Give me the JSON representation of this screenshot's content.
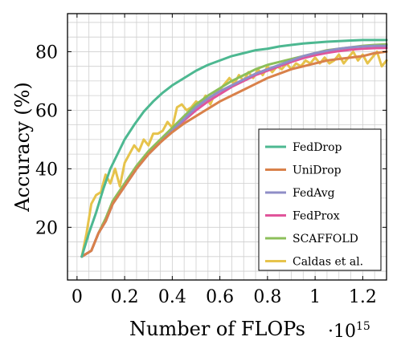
{
  "chart_data": {
    "type": "line",
    "title": "",
    "xlabel": "Number of FLOPs",
    "ylabel": "Accuracy (%)",
    "x_scale_label": "·10",
    "x_scale_exponent": "15",
    "xlim": [
      -0.04,
      1.3
    ],
    "ylim": [
      2,
      93
    ],
    "x_ticks": [
      0,
      0.2,
      0.4,
      0.6,
      0.8,
      1,
      1.2
    ],
    "x_tick_labels": [
      "0",
      "0.2",
      "0.4",
      "0.6",
      "0.8",
      "1",
      "1.2"
    ],
    "y_ticks": [
      20,
      40,
      60,
      80
    ],
    "y_tick_labels": [
      "20",
      "40",
      "60",
      "80"
    ],
    "x_minor_step": 0.05,
    "y_minor_step": 5,
    "grid": true,
    "legend_position": "lower-right",
    "series": [
      {
        "name": "FedDrop",
        "color": "#4db891",
        "points": [
          [
            0.02,
            10
          ],
          [
            0.05,
            18
          ],
          [
            0.08,
            25
          ],
          [
            0.11,
            33
          ],
          [
            0.14,
            40
          ],
          [
            0.17,
            45
          ],
          [
            0.2,
            50
          ],
          [
            0.24,
            55
          ],
          [
            0.28,
            59.5
          ],
          [
            0.32,
            63
          ],
          [
            0.36,
            66
          ],
          [
            0.4,
            68.5
          ],
          [
            0.45,
            71
          ],
          [
            0.5,
            73.5
          ],
          [
            0.55,
            75.5
          ],
          [
            0.6,
            77
          ],
          [
            0.65,
            78.5
          ],
          [
            0.7,
            79.5
          ],
          [
            0.75,
            80.5
          ],
          [
            0.8,
            81
          ],
          [
            0.85,
            81.8
          ],
          [
            0.9,
            82.3
          ],
          [
            0.95,
            82.8
          ],
          [
            1.0,
            83.1
          ],
          [
            1.05,
            83.4
          ],
          [
            1.1,
            83.6
          ],
          [
            1.15,
            83.8
          ],
          [
            1.2,
            84
          ],
          [
            1.25,
            84
          ],
          [
            1.3,
            84
          ]
        ]
      },
      {
        "name": "UniDrop",
        "color": "#d9814a",
        "points": [
          [
            0.02,
            10
          ],
          [
            0.06,
            12
          ],
          [
            0.09,
            18
          ],
          [
            0.12,
            22
          ],
          [
            0.15,
            28
          ],
          [
            0.2,
            34
          ],
          [
            0.25,
            40
          ],
          [
            0.3,
            45
          ],
          [
            0.35,
            49
          ],
          [
            0.4,
            52.5
          ],
          [
            0.45,
            55.5
          ],
          [
            0.5,
            58
          ],
          [
            0.55,
            60.5
          ],
          [
            0.6,
            63
          ],
          [
            0.65,
            65
          ],
          [
            0.7,
            67
          ],
          [
            0.75,
            69
          ],
          [
            0.8,
            71
          ],
          [
            0.85,
            72.5
          ],
          [
            0.9,
            74
          ],
          [
            0.95,
            75
          ],
          [
            1.0,
            76
          ],
          [
            1.05,
            77
          ],
          [
            1.1,
            77.5
          ],
          [
            1.15,
            78
          ],
          [
            1.2,
            78.5
          ],
          [
            1.25,
            79.5
          ],
          [
            1.3,
            80
          ]
        ]
      },
      {
        "name": "FedAvg",
        "color": "#8f8ec7",
        "points": [
          [
            0.02,
            10
          ],
          [
            0.06,
            12
          ],
          [
            0.09,
            18
          ],
          [
            0.12,
            22
          ],
          [
            0.15,
            28
          ],
          [
            0.2,
            34
          ],
          [
            0.25,
            40
          ],
          [
            0.3,
            45
          ],
          [
            0.35,
            49
          ],
          [
            0.4,
            53
          ],
          [
            0.45,
            57
          ],
          [
            0.5,
            61
          ],
          [
            0.55,
            64
          ],
          [
            0.6,
            66.5
          ],
          [
            0.65,
            68.5
          ],
          [
            0.7,
            70.5
          ],
          [
            0.75,
            72.5
          ],
          [
            0.8,
            74
          ],
          [
            0.85,
            75.5
          ],
          [
            0.9,
            77
          ],
          [
            0.95,
            78.5
          ],
          [
            1.0,
            79.5
          ],
          [
            1.05,
            80.3
          ],
          [
            1.1,
            81
          ],
          [
            1.15,
            81.5
          ],
          [
            1.2,
            81.8
          ],
          [
            1.25,
            82
          ],
          [
            1.3,
            82
          ]
        ]
      },
      {
        "name": "FedProx",
        "color": "#e0559b",
        "points": [
          [
            0.02,
            10
          ],
          [
            0.06,
            12
          ],
          [
            0.09,
            18
          ],
          [
            0.12,
            22
          ],
          [
            0.15,
            28
          ],
          [
            0.2,
            34
          ],
          [
            0.25,
            40
          ],
          [
            0.3,
            45
          ],
          [
            0.35,
            49
          ],
          [
            0.4,
            53
          ],
          [
            0.45,
            56.5
          ],
          [
            0.5,
            60
          ],
          [
            0.55,
            63
          ],
          [
            0.6,
            65.5
          ],
          [
            0.65,
            68
          ],
          [
            0.7,
            70
          ],
          [
            0.75,
            72
          ],
          [
            0.8,
            73.5
          ],
          [
            0.85,
            75
          ],
          [
            0.9,
            76.5
          ],
          [
            0.95,
            77.8
          ],
          [
            1.0,
            78.8
          ],
          [
            1.05,
            79.6
          ],
          [
            1.1,
            80.2
          ],
          [
            1.15,
            80.7
          ],
          [
            1.2,
            81
          ],
          [
            1.25,
            81.2
          ],
          [
            1.3,
            81.3
          ]
        ]
      },
      {
        "name": "SCAFFOLD",
        "color": "#8cbf5a",
        "points": [
          [
            0.02,
            10
          ],
          [
            0.06,
            12
          ],
          [
            0.09,
            18
          ],
          [
            0.12,
            23
          ],
          [
            0.15,
            29
          ],
          [
            0.2,
            35
          ],
          [
            0.25,
            41
          ],
          [
            0.3,
            46
          ],
          [
            0.35,
            50
          ],
          [
            0.4,
            54
          ],
          [
            0.45,
            58
          ],
          [
            0.5,
            62
          ],
          [
            0.55,
            65
          ],
          [
            0.6,
            67.5
          ],
          [
            0.65,
            70
          ],
          [
            0.7,
            72
          ],
          [
            0.75,
            74
          ],
          [
            0.8,
            75.5
          ],
          [
            0.85,
            76.5
          ],
          [
            0.9,
            77.5
          ],
          [
            0.95,
            78.5
          ],
          [
            1.0,
            79.5
          ],
          [
            1.05,
            80.5
          ],
          [
            1.1,
            81
          ],
          [
            1.15,
            81.5
          ],
          [
            1.2,
            82
          ],
          [
            1.25,
            82.3
          ],
          [
            1.3,
            82.5
          ]
        ]
      },
      {
        "name": "Caldas et al.",
        "color": "#e6c34b",
        "points": [
          [
            0.02,
            10
          ],
          [
            0.04,
            18
          ],
          [
            0.06,
            28
          ],
          [
            0.08,
            31
          ],
          [
            0.1,
            32
          ],
          [
            0.12,
            38
          ],
          [
            0.14,
            35
          ],
          [
            0.16,
            40
          ],
          [
            0.18,
            34
          ],
          [
            0.2,
            42
          ],
          [
            0.22,
            45
          ],
          [
            0.24,
            48
          ],
          [
            0.26,
            46
          ],
          [
            0.28,
            50
          ],
          [
            0.3,
            48
          ],
          [
            0.32,
            52
          ],
          [
            0.34,
            52
          ],
          [
            0.36,
            53
          ],
          [
            0.38,
            56
          ],
          [
            0.4,
            54
          ],
          [
            0.42,
            61
          ],
          [
            0.44,
            62
          ],
          [
            0.46,
            60
          ],
          [
            0.48,
            61
          ],
          [
            0.5,
            63
          ],
          [
            0.52,
            62
          ],
          [
            0.54,
            65
          ],
          [
            0.56,
            62
          ],
          [
            0.58,
            66
          ],
          [
            0.6,
            67
          ],
          [
            0.62,
            69
          ],
          [
            0.64,
            71
          ],
          [
            0.66,
            69
          ],
          [
            0.68,
            72
          ],
          [
            0.7,
            70
          ],
          [
            0.72,
            73
          ],
          [
            0.74,
            71
          ],
          [
            0.76,
            74
          ],
          [
            0.78,
            72
          ],
          [
            0.8,
            75
          ],
          [
            0.82,
            73
          ],
          [
            0.84,
            75
          ],
          [
            0.86,
            74
          ],
          [
            0.88,
            76
          ],
          [
            0.9,
            74
          ],
          [
            0.92,
            76
          ],
          [
            0.94,
            75
          ],
          [
            0.96,
            77
          ],
          [
            0.98,
            76
          ],
          [
            1.0,
            78
          ],
          [
            1.02,
            76
          ],
          [
            1.04,
            78
          ],
          [
            1.06,
            76
          ],
          [
            1.08,
            77
          ],
          [
            1.1,
            79
          ],
          [
            1.12,
            76
          ],
          [
            1.14,
            78
          ],
          [
            1.16,
            80
          ],
          [
            1.18,
            77
          ],
          [
            1.2,
            79
          ],
          [
            1.22,
            76
          ],
          [
            1.24,
            78
          ],
          [
            1.26,
            80
          ],
          [
            1.28,
            75
          ],
          [
            1.3,
            77
          ]
        ]
      }
    ]
  }
}
